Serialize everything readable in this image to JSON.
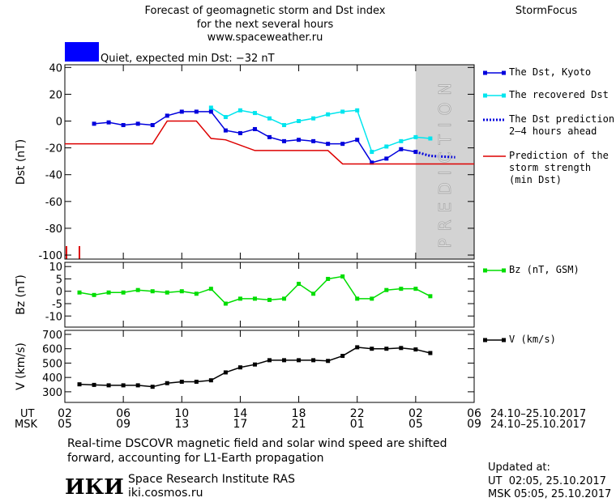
{
  "header": {
    "title_lines": [
      "Forecast of geomagnetic storm and Dst index",
      "for the next several hours",
      "www.spaceweather.ru"
    ],
    "brand": "StormFocus",
    "status": "Quiet, expected min Dst: −32 nT",
    "status_color": "#0000ff"
  },
  "prediction_label": "PREDICTION",
  "prediction_region": [
    24,
    28
  ],
  "x_axis": {
    "xlim": [
      0,
      28
    ],
    "xticks": [
      {
        "value": 0,
        "label": "02"
      },
      {
        "value": 4,
        "label": "06"
      },
      {
        "value": 8,
        "label": "10"
      },
      {
        "value": 12,
        "label": "14"
      },
      {
        "value": 16,
        "label": "18"
      },
      {
        "value": 20,
        "label": "22"
      },
      {
        "value": 24,
        "label": "02"
      },
      {
        "value": 28,
        "label": "06"
      }
    ],
    "msk_labels": [
      "05",
      "09",
      "13",
      "17",
      "21",
      "01",
      "05",
      "09"
    ],
    "ut_label": "UT",
    "msk_label": "MSK",
    "date_range": "24.10–25.10.2017"
  },
  "chart_data": [
    {
      "type": "line",
      "y_label": "Dst (nT)",
      "ylim": [
        -103,
        42
      ],
      "yticks": [
        40,
        20,
        0,
        -20,
        -40,
        -60,
        -80,
        -100
      ],
      "series": [
        {
          "name": "The Dst, Kyoto",
          "color": "#0000dd",
          "marker": true,
          "x": [
            2,
            3,
            4,
            5,
            6,
            7,
            8,
            9,
            10,
            11,
            12,
            13,
            14,
            15,
            16,
            17,
            18,
            19,
            20,
            21,
            22,
            23,
            24
          ],
          "values": [
            -2,
            -1,
            -3,
            -2,
            -3,
            4,
            7,
            7,
            7,
            -7,
            -9,
            -6,
            -12,
            -15,
            -14,
            -15,
            -17,
            -17,
            -14,
            -31,
            -28,
            -21,
            -23
          ]
        },
        {
          "name": "The recovered Dst",
          "color": "#00e5ee",
          "marker": true,
          "x": [
            10,
            11,
            12,
            13,
            14,
            15,
            16,
            17,
            18,
            19,
            20,
            21,
            22,
            23,
            24,
            25
          ],
          "values": [
            10,
            3,
            8,
            6,
            2,
            -3,
            0,
            2,
            5,
            7,
            8,
            -23,
            -19,
            -15,
            -12,
            -13
          ]
        },
        {
          "name": "The Dst prediction 2–4 hours ahead",
          "color": "#0000dd",
          "dotted": true,
          "x": [
            24,
            25,
            26.7
          ],
          "values": [
            -23,
            -26,
            -27
          ]
        },
        {
          "name": "Prediction of the storm strength (min Dst)",
          "color": "#dd0000",
          "x": [
            0,
            6,
            7,
            9,
            10,
            11,
            13,
            18,
            19,
            28
          ],
          "values": [
            -17,
            -17,
            0,
            0,
            -13,
            -14,
            -22,
            -22,
            -32,
            -32
          ]
        }
      ]
    },
    {
      "type": "line",
      "y_label": "Bz (nT)",
      "ylim": [
        -14.5,
        11.7
      ],
      "yticks": [
        10,
        5,
        0,
        -5,
        -10
      ],
      "series": [
        {
          "name": "Bz (nT, GSM)",
          "color": "#00dd00",
          "marker": true,
          "x": [
            1,
            2,
            3,
            4,
            5,
            6,
            7,
            8,
            9,
            10,
            11,
            12,
            13,
            14,
            15,
            16,
            17,
            18,
            19,
            20,
            21,
            22,
            23,
            24,
            25
          ],
          "values": [
            -0.5,
            -1.5,
            -0.5,
            -0.5,
            0.5,
            0,
            -0.5,
            0,
            -1,
            1,
            -5,
            -3,
            -3,
            -3.5,
            -3,
            3,
            -1,
            5,
            6,
            -3,
            -3,
            0.5,
            1,
            1,
            -2
          ]
        }
      ]
    },
    {
      "type": "line",
      "y_label": "V (km/s)",
      "ylim": [
        226,
        728
      ],
      "yticks": [
        700,
        600,
        500,
        400,
        300
      ],
      "series": [
        {
          "name": "V (km/s)",
          "color": "#000000",
          "marker": true,
          "x": [
            1,
            2,
            3,
            4,
            5,
            6,
            7,
            8,
            9,
            10,
            11,
            12,
            13,
            14,
            15,
            16,
            17,
            18,
            19,
            20,
            21,
            22,
            23,
            24,
            25
          ],
          "values": [
            352,
            348,
            345,
            345,
            345,
            335,
            360,
            370,
            370,
            380,
            435,
            470,
            490,
            520,
            520,
            520,
            520,
            515,
            550,
            610,
            600,
            600,
            605,
            595,
            570
          ]
        }
      ]
    }
  ],
  "footer": {
    "note_lines": [
      "Real-time DSCOVR magnetic field and solar wind speed are shifted",
      "forward, accounting for L1-Earth propagation"
    ],
    "logo": "ИКИ",
    "institute": "Space Research Institute RAS",
    "url": "iki.cosmos.ru",
    "updated": "Updated at:",
    "updated_ut": "UT  02:05, 25.10.2017",
    "updated_msk": "MSK 05:05, 25.10.2017"
  }
}
